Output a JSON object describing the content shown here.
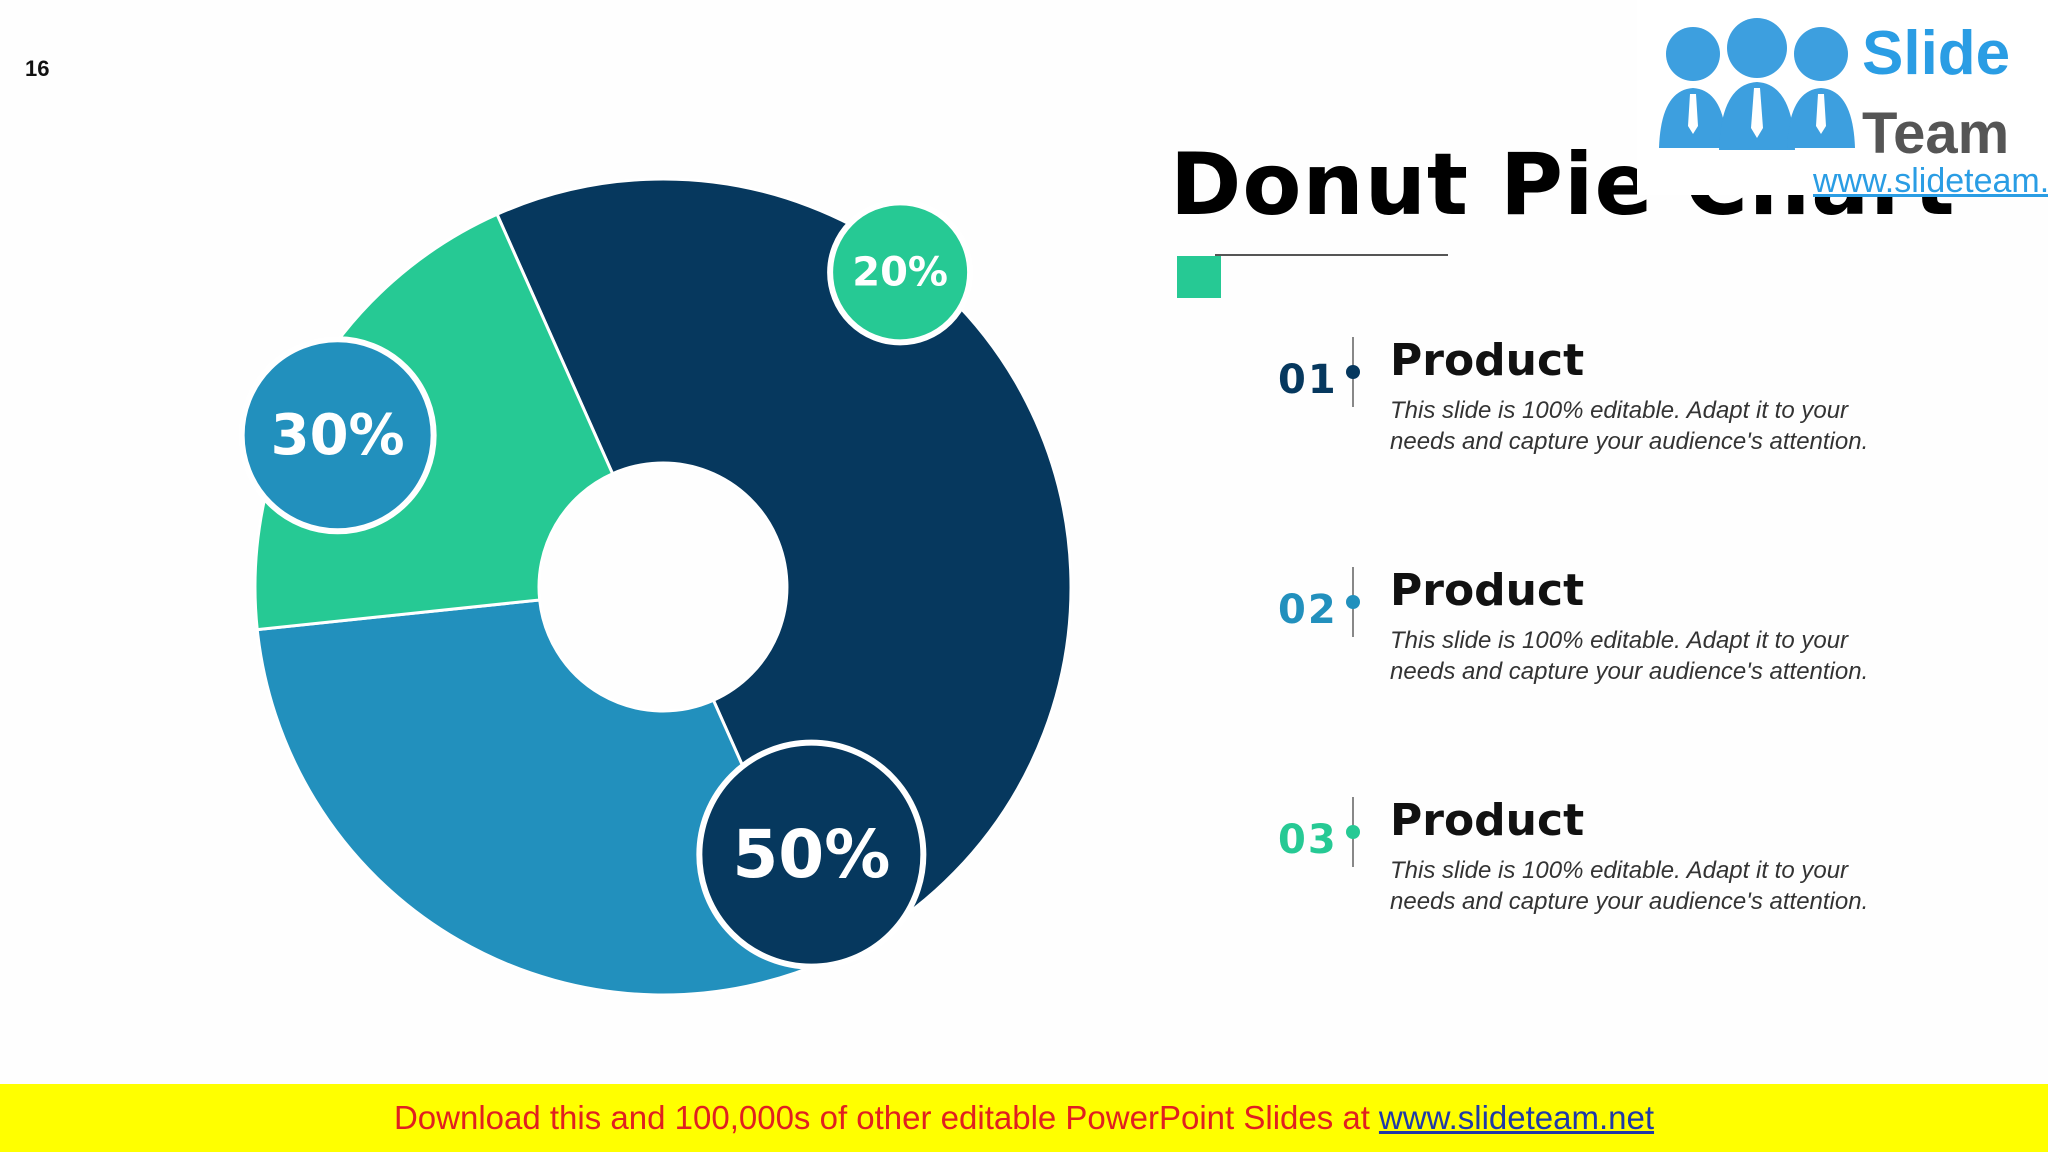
{
  "slide": {
    "page_number": "16",
    "title": "Donut Pie Chart",
    "accent_color": "#26c994"
  },
  "chart_data": {
    "type": "pie",
    "variant": "donut",
    "categories": [
      "Product 01",
      "Product 02",
      "Product 03"
    ],
    "values": [
      50,
      30,
      20
    ],
    "data_labels": [
      "50%",
      "30%",
      "20%"
    ],
    "colors": [
      "#06385e",
      "#2290bd",
      "#26c994"
    ],
    "label_text_color": "#ffffff",
    "title": "",
    "legend": "right"
  },
  "items": [
    {
      "number": "01",
      "heading": "Product",
      "text": "This slide is 100% editable. Adapt it to your needs and capture your audience's attention.",
      "color": "#06385e"
    },
    {
      "number": "02",
      "heading": "Product",
      "text": "This slide is 100% editable. Adapt it to your needs and capture your audience's attention.",
      "color": "#2290bd"
    },
    {
      "number": "03",
      "heading": "Product",
      "text": "This slide is 100% editable. Adapt it to your needs and capture your audience's attention.",
      "color": "#26c994"
    }
  ],
  "logo": {
    "line1": "Slide",
    "line2": "Team",
    "url": "www.slideteam.net",
    "icon": "people-group-icon"
  },
  "banner": {
    "text": "Download this and 100,000s of other editable PowerPoint Slides at",
    "link": "www.slideteam.net"
  }
}
